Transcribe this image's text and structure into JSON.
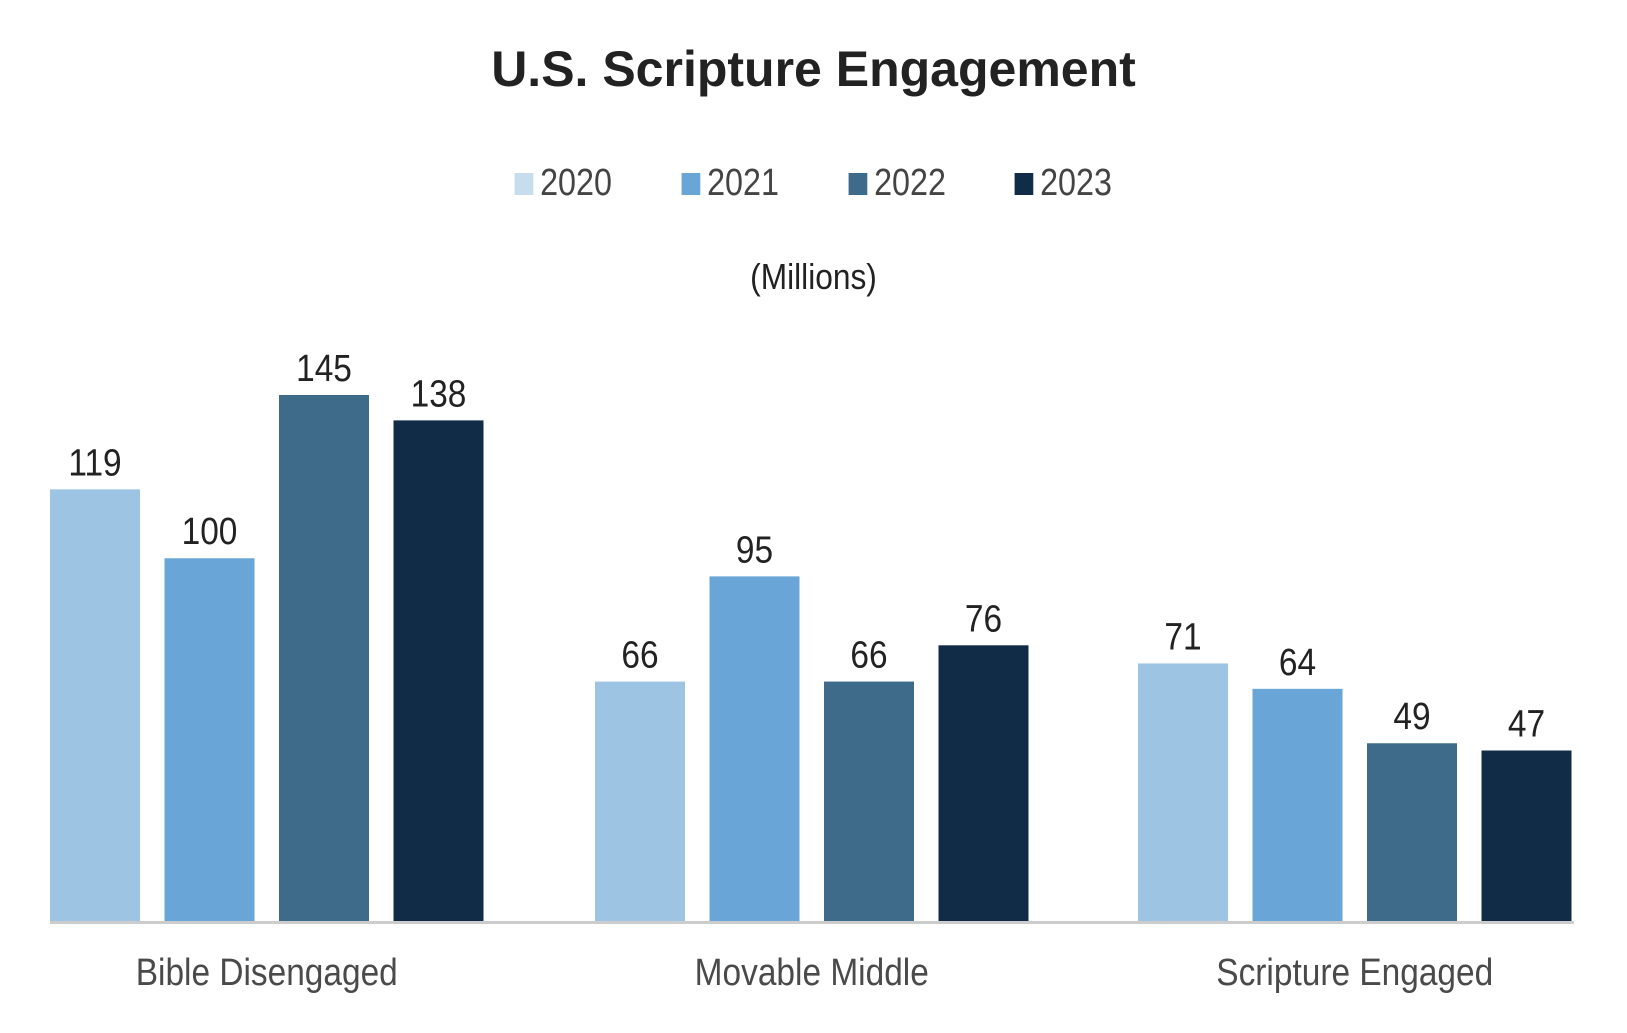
{
  "chart_data": {
    "type": "bar",
    "title": "U.S. Scripture Engagement",
    "subtitle": "(Millions)",
    "categories": [
      "Bible Disengaged",
      "Movable Middle",
      "Scripture Engaged"
    ],
    "series": [
      {
        "name": "2020",
        "values": [
          119,
          66,
          71
        ],
        "color": "#9dc5e3",
        "legend_color": "#c6ddee"
      },
      {
        "name": "2021",
        "values": [
          100,
          95,
          64
        ],
        "color": "#69a6d7",
        "legend_color": "#69a6d7"
      },
      {
        "name": "2022",
        "values": [
          145,
          66,
          49
        ],
        "color": "#3f6b8a",
        "legend_color": "#3f6b8a"
      },
      {
        "name": "2023",
        "values": [
          138,
          76,
          47
        ],
        "color": "#112c47",
        "legend_color": "#112c47"
      }
    ],
    "ylim": [
      0,
      145
    ],
    "grid": false,
    "legend_position": "top",
    "data_labels": true
  }
}
